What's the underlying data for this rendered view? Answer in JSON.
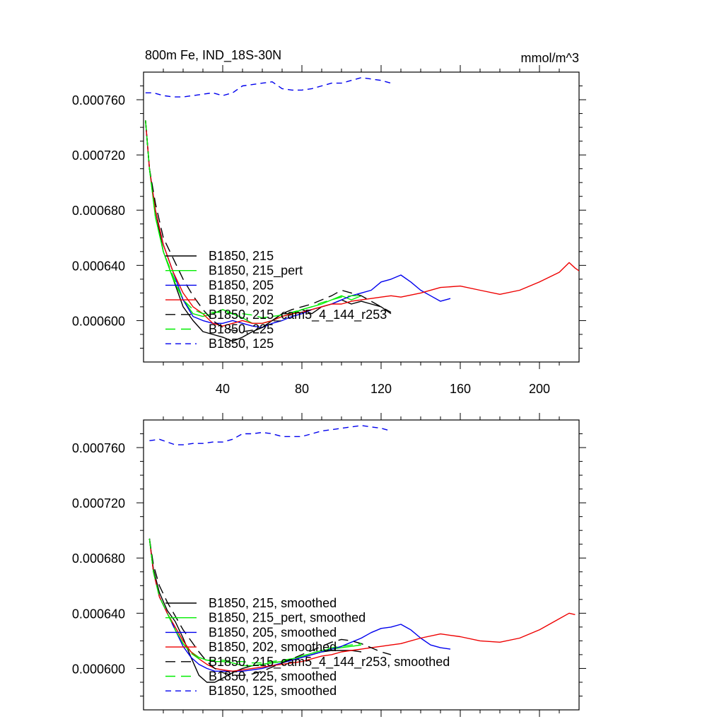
{
  "chart_data": [
    {
      "type": "line",
      "title": "800m Fe, IND_18S-30N",
      "title_right": "mmol/m^3",
      "xlim": [
        0,
        220
      ],
      "ylim": [
        0.00057,
        0.00078
      ],
      "xticks": [
        40,
        80,
        120,
        160,
        200
      ],
      "yticks": [
        0.0006,
        0.00064,
        0.00068,
        0.00072,
        0.00076
      ],
      "xtick_labels": [
        "40",
        "80",
        "120",
        "160",
        "200"
      ],
      "ytick_labels": [
        "0.000600",
        "0.000640",
        "0.000680",
        "0.000720",
        "0.000760"
      ],
      "legend_position": "lower-left",
      "series": [
        {
          "name": "B1850, 215",
          "color": "#000000",
          "dash": "solid",
          "x": [
            1,
            3,
            6,
            10,
            15,
            20,
            25,
            30,
            35,
            40,
            45,
            50,
            55,
            60,
            65,
            70,
            75,
            80,
            85,
            90,
            95,
            100,
            105,
            110,
            115,
            120,
            125
          ],
          "y": [
            0.000745,
            0.00071,
            0.00068,
            0.00065,
            0.00063,
            0.00061,
            0.0006,
            0.000592,
            0.00059,
            0.000588,
            0.000585,
            0.000588,
            0.000592,
            0.000595,
            0.0006,
            0.000605,
            0.000605,
            0.000608,
            0.000605,
            0.00061,
            0.000612,
            0.000615,
            0.000612,
            0.000614,
            0.000612,
            0.00061,
            0.000605
          ]
        },
        {
          "name": "B1850, 215_pert",
          "color": "#00ee00",
          "dash": "solid",
          "x": [
            1,
            3,
            6,
            10,
            15,
            20,
            25,
            30,
            35,
            40,
            45,
            50,
            55,
            60,
            65,
            70,
            75,
            80,
            85,
            90,
            95,
            100,
            105,
            110
          ],
          "y": [
            0.000745,
            0.00071,
            0.000675,
            0.00065,
            0.00063,
            0.000615,
            0.000605,
            0.000603,
            0.000605,
            0.000608,
            0.000605,
            0.000602,
            0.000598,
            0.000598,
            0.0006,
            0.000603,
            0.000605,
            0.000608,
            0.00061,
            0.000612,
            0.000615,
            0.000618,
            0.000615,
            0.000618
          ]
        },
        {
          "name": "B1850, 205",
          "color": "#0000ee",
          "dash": "solid",
          "x": [
            1,
            3,
            6,
            10,
            15,
            20,
            25,
            30,
            35,
            40,
            45,
            50,
            55,
            60,
            65,
            70,
            75,
            80,
            85,
            90,
            95,
            100,
            105,
            110,
            115,
            120,
            125,
            130,
            135,
            140,
            145,
            150,
            155
          ],
          "y": [
            0.000745,
            0.00071,
            0.00068,
            0.000655,
            0.000635,
            0.000615,
            0.000603,
            0.0006,
            0.000598,
            0.000598,
            0.0006,
            0.000598,
            0.000596,
            0.000595,
            0.000598,
            0.0006,
            0.000603,
            0.000605,
            0.000608,
            0.00061,
            0.000612,
            0.000615,
            0.000618,
            0.00062,
            0.000622,
            0.000628,
            0.00063,
            0.000633,
            0.000628,
            0.000622,
            0.000618,
            0.000614,
            0.000616
          ]
        },
        {
          "name": "B1850, 202",
          "color": "#ee0000",
          "dash": "solid",
          "x": [
            1,
            3,
            6,
            10,
            15,
            20,
            25,
            30,
            35,
            40,
            45,
            50,
            55,
            60,
            65,
            70,
            75,
            80,
            85,
            90,
            95,
            100,
            105,
            110,
            115,
            120,
            125,
            130,
            140,
            150,
            160,
            170,
            180,
            190,
            200,
            210,
            215,
            218,
            220
          ],
          "y": [
            0.000745,
            0.00071,
            0.00068,
            0.000655,
            0.000635,
            0.00062,
            0.00061,
            0.000605,
            0.000598,
            0.000596,
            0.000598,
            0.0006,
            0.000598,
            0.000598,
            0.0006,
            0.000603,
            0.000605,
            0.000606,
            0.000608,
            0.00061,
            0.000612,
            0.000612,
            0.000614,
            0.000615,
            0.000616,
            0.000617,
            0.000618,
            0.000617,
            0.00062,
            0.000624,
            0.000625,
            0.000622,
            0.000619,
            0.000622,
            0.000628,
            0.000635,
            0.000642,
            0.000638,
            0.000636
          ]
        },
        {
          "name": "B1850, 215_cam5_4_144_r253",
          "color": "#000000",
          "dash": "long",
          "x": [
            1,
            3,
            6,
            10,
            15,
            20,
            25,
            30,
            35,
            40,
            45,
            50,
            55,
            60,
            65,
            70,
            75,
            80,
            85,
            90,
            95,
            100,
            105,
            110,
            115,
            120,
            125
          ],
          "y": [
            0.000745,
            0.00071,
            0.000685,
            0.00066,
            0.000645,
            0.00063,
            0.000618,
            0.000608,
            0.0006,
            0.000595,
            0.000593,
            0.000592,
            0.000593,
            0.000595,
            0.0006,
            0.000605,
            0.000608,
            0.00061,
            0.000612,
            0.000615,
            0.000618,
            0.000622,
            0.00062,
            0.000618,
            0.000614,
            0.00061,
            0.000606
          ]
        },
        {
          "name": "B1850, 225",
          "color": "#00ee00",
          "dash": "long",
          "x": [
            1,
            3,
            6,
            10,
            15,
            20,
            25,
            30,
            35,
            40,
            45,
            50,
            55,
            60,
            65,
            70,
            75,
            80,
            85,
            90,
            95,
            100,
            105,
            110
          ],
          "y": [
            0.000745,
            0.00071,
            0.000675,
            0.00065,
            0.000632,
            0.000615,
            0.000608,
            0.000605,
            0.000606,
            0.000606,
            0.000605,
            0.000605,
            0.000604,
            0.000602,
            0.000603,
            0.000604,
            0.000606,
            0.000608,
            0.00061,
            0.000613,
            0.000615,
            0.000617,
            0.000618,
            0.000618
          ]
        },
        {
          "name": "B1850, 125",
          "color": "#0000ee",
          "dash": "short",
          "x": [
            1,
            5,
            10,
            15,
            20,
            25,
            30,
            35,
            40,
            45,
            50,
            55,
            60,
            65,
            70,
            75,
            80,
            85,
            90,
            95,
            100,
            105,
            110,
            115,
            120,
            125
          ],
          "y": [
            0.000765,
            0.000765,
            0.000763,
            0.000762,
            0.000762,
            0.000763,
            0.000764,
            0.000765,
            0.000763,
            0.000765,
            0.00077,
            0.000771,
            0.000772,
            0.000773,
            0.000768,
            0.000767,
            0.000767,
            0.000768,
            0.00077,
            0.000772,
            0.000772,
            0.000774,
            0.000776,
            0.000775,
            0.000774,
            0.000772
          ]
        }
      ]
    },
    {
      "type": "line",
      "xlim": [
        0,
        220
      ],
      "ylim": [
        0.00057,
        0.00078
      ],
      "xticks": [
        40,
        80,
        120,
        160,
        200
      ],
      "yticks": [
        0.0006,
        0.00064,
        0.00068,
        0.00072,
        0.00076
      ],
      "xtick_labels": [],
      "ytick_labels": [
        "0.000600",
        "0.000640",
        "0.000680",
        "0.000720",
        "0.000760"
      ],
      "legend_position": "lower-left",
      "series": [
        {
          "name": "B1850, 215, smoothed",
          "color": "#000000",
          "dash": "solid",
          "x": [
            3,
            5,
            8,
            12,
            16,
            20,
            24,
            28,
            32,
            36,
            40,
            45,
            50,
            55,
            60,
            65,
            70,
            75,
            80,
            85,
            90,
            95,
            100,
            105,
            110
          ],
          "y": [
            0.000694,
            0.000672,
            0.000655,
            0.000642,
            0.000634,
            0.000622,
            0.000608,
            0.000595,
            0.00059,
            0.00059,
            0.000593,
            0.000597,
            0.0006,
            0.000602,
            0.000603,
            0.000604,
            0.000605,
            0.000606,
            0.000608,
            0.00061,
            0.000612,
            0.000613,
            0.000613,
            0.000613,
            0.000612
          ]
        },
        {
          "name": "B1850, 215_pert, smoothed",
          "color": "#00ee00",
          "dash": "solid",
          "x": [
            3,
            5,
            8,
            12,
            16,
            20,
            24,
            28,
            32,
            36,
            40,
            45,
            50,
            55,
            60,
            65,
            70,
            75,
            80,
            85,
            90,
            95,
            100,
            105,
            110
          ],
          "y": [
            0.000694,
            0.00067,
            0.000652,
            0.00064,
            0.000628,
            0.000618,
            0.000612,
            0.000608,
            0.000606,
            0.000605,
            0.000605,
            0.000604,
            0.000602,
            0.000602,
            0.000603,
            0.000604,
            0.000605,
            0.000607,
            0.000609,
            0.000611,
            0.000613,
            0.000614,
            0.000615,
            0.000616,
            0.000617
          ]
        },
        {
          "name": "B1850, 205, smoothed",
          "color": "#0000ee",
          "dash": "solid",
          "x": [
            3,
            5,
            8,
            12,
            16,
            20,
            24,
            28,
            32,
            36,
            40,
            45,
            50,
            55,
            60,
            65,
            70,
            75,
            80,
            85,
            90,
            95,
            100,
            105,
            110,
            115,
            120,
            125,
            130,
            135,
            140,
            145,
            150,
            155
          ],
          "y": [
            0.000694,
            0.00067,
            0.000652,
            0.00064,
            0.000628,
            0.000616,
            0.000608,
            0.000603,
            0.0006,
            0.000598,
            0.000598,
            0.000598,
            0.000598,
            0.000599,
            0.0006,
            0.000602,
            0.000604,
            0.000606,
            0.000608,
            0.00061,
            0.000612,
            0.000614,
            0.000616,
            0.000619,
            0.000622,
            0.000626,
            0.000629,
            0.00063,
            0.000632,
            0.000628,
            0.000622,
            0.000617,
            0.000615,
            0.000614
          ]
        },
        {
          "name": "B1850, 202, smoothed",
          "color": "#ee0000",
          "dash": "solid",
          "x": [
            3,
            5,
            8,
            12,
            16,
            20,
            24,
            28,
            32,
            36,
            40,
            45,
            50,
            55,
            60,
            65,
            70,
            75,
            80,
            85,
            90,
            95,
            100,
            105,
            110,
            115,
            120,
            125,
            130,
            140,
            150,
            160,
            170,
            180,
            190,
            200,
            210,
            215,
            218
          ],
          "y": [
            0.000694,
            0.00067,
            0.000652,
            0.00064,
            0.00063,
            0.00062,
            0.000612,
            0.000607,
            0.000603,
            0.0006,
            0.000599,
            0.000598,
            0.000599,
            0.0006,
            0.000601,
            0.000602,
            0.000603,
            0.000604,
            0.000605,
            0.000607,
            0.000609,
            0.00061,
            0.000612,
            0.000613,
            0.000614,
            0.000615,
            0.000616,
            0.000617,
            0.000618,
            0.000622,
            0.000625,
            0.000623,
            0.00062,
            0.000619,
            0.000622,
            0.000628,
            0.000636,
            0.00064,
            0.000639
          ]
        },
        {
          "name": "B1850, 215_cam5_4_144_r253, smoothed",
          "color": "#000000",
          "dash": "long",
          "x": [
            3,
            5,
            8,
            12,
            16,
            20,
            24,
            28,
            32,
            36,
            40,
            45,
            50,
            55,
            60,
            65,
            70,
            75,
            80,
            85,
            90,
            95,
            100,
            105,
            110,
            115,
            120,
            125
          ],
          "y": [
            0.000694,
            0.000675,
            0.00066,
            0.000648,
            0.000638,
            0.000628,
            0.00062,
            0.000612,
            0.000605,
            0.0006,
            0.000597,
            0.000595,
            0.000595,
            0.000596,
            0.000598,
            0.000601,
            0.000604,
            0.000607,
            0.00061,
            0.000613,
            0.000616,
            0.000619,
            0.000621,
            0.00062,
            0.000618,
            0.000615,
            0.000612,
            0.00061
          ]
        },
        {
          "name": "B1850, 225, smoothed",
          "color": "#00ee00",
          "dash": "long",
          "x": [
            3,
            5,
            8,
            12,
            16,
            20,
            24,
            28,
            32,
            36,
            40,
            45,
            50,
            55,
            60,
            65,
            70,
            75,
            80,
            85,
            90,
            95,
            100,
            105,
            110
          ],
          "y": [
            0.000694,
            0.00067,
            0.000652,
            0.00064,
            0.000628,
            0.000618,
            0.000611,
            0.000607,
            0.000606,
            0.000606,
            0.000606,
            0.000605,
            0.000605,
            0.000604,
            0.000604,
            0.000605,
            0.000606,
            0.000607,
            0.000609,
            0.000611,
            0.000613,
            0.000615,
            0.000616,
            0.000617,
            0.000618
          ]
        },
        {
          "name": "B1850, 125, smoothed",
          "color": "#0000ee",
          "dash": "short",
          "x": [
            3,
            8,
            12,
            16,
            20,
            25,
            30,
            35,
            40,
            45,
            50,
            55,
            60,
            65,
            70,
            75,
            80,
            85,
            90,
            95,
            100,
            105,
            110,
            115,
            120,
            125
          ],
          "y": [
            0.000765,
            0.000766,
            0.000764,
            0.000762,
            0.000762,
            0.000763,
            0.000763,
            0.000764,
            0.000764,
            0.000766,
            0.00077,
            0.00077,
            0.000771,
            0.00077,
            0.000768,
            0.000768,
            0.000768,
            0.00077,
            0.000772,
            0.000773,
            0.000774,
            0.000775,
            0.000776,
            0.000775,
            0.000774,
            0.000772
          ]
        }
      ]
    }
  ]
}
